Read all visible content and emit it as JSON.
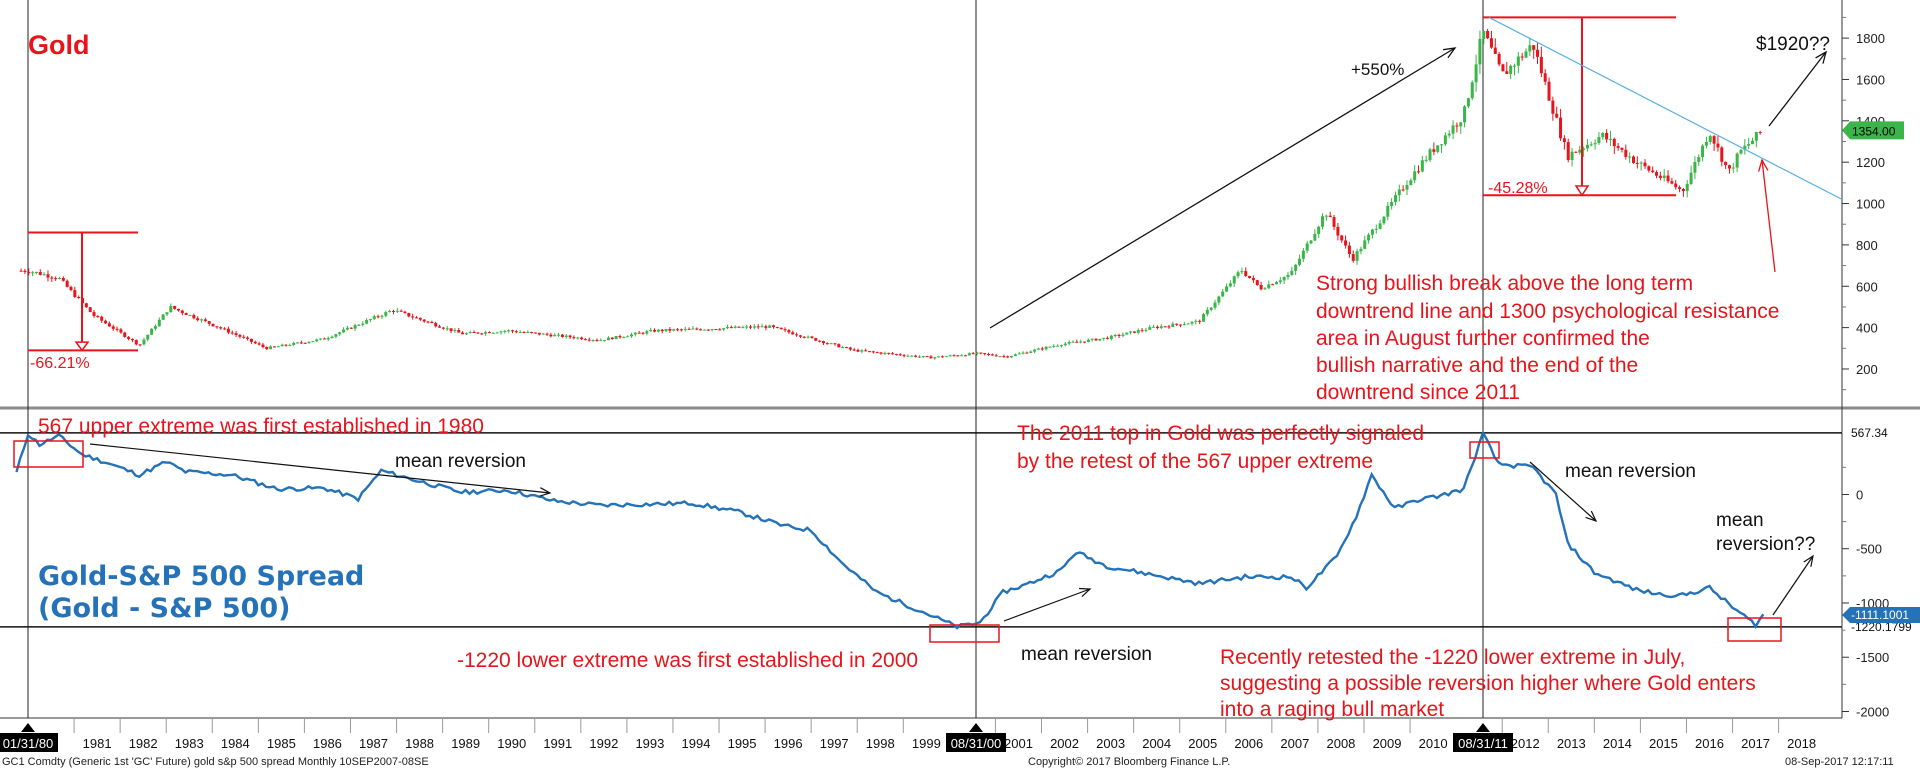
{
  "chart_data": [
    {
      "type": "candlestick",
      "title": "Gold",
      "ylim": [
        50,
        1960
      ],
      "yticks": [
        200,
        400,
        600,
        800,
        1000,
        1200,
        1400,
        1600,
        1800
      ],
      "last_value": "1354.00",
      "points": [
        {
          "date": "1980-01",
          "value": 675
        },
        {
          "date": "1980-09",
          "value": 640
        },
        {
          "date": "1981-06",
          "value": 460
        },
        {
          "date": "1982-06",
          "value": 315
        },
        {
          "date": "1983-02",
          "value": 500
        },
        {
          "date": "1984-06",
          "value": 375
        },
        {
          "date": "1985-03",
          "value": 300
        },
        {
          "date": "1986-06",
          "value": 345
        },
        {
          "date": "1987-12",
          "value": 485
        },
        {
          "date": "1989-06",
          "value": 370
        },
        {
          "date": "1990-06",
          "value": 385
        },
        {
          "date": "1992-06",
          "value": 340
        },
        {
          "date": "1993-08",
          "value": 385
        },
        {
          "date": "1996-02",
          "value": 405
        },
        {
          "date": "1997-12",
          "value": 290
        },
        {
          "date": "1999-08",
          "value": 255
        },
        {
          "date": "2000-08",
          "value": 275
        },
        {
          "date": "2001-04",
          "value": 260
        },
        {
          "date": "2002-06",
          "value": 320
        },
        {
          "date": "2003-06",
          "value": 350
        },
        {
          "date": "2004-06",
          "value": 400
        },
        {
          "date": "2005-06",
          "value": 430
        },
        {
          "date": "2006-05",
          "value": 680
        },
        {
          "date": "2006-10",
          "value": 590
        },
        {
          "date": "2007-06",
          "value": 660
        },
        {
          "date": "2008-03",
          "value": 960
        },
        {
          "date": "2008-10",
          "value": 730
        },
        {
          "date": "2009-06",
          "value": 940
        },
        {
          "date": "2009-12",
          "value": 1100
        },
        {
          "date": "2010-06",
          "value": 1240
        },
        {
          "date": "2011-03",
          "value": 1430
        },
        {
          "date": "2011-08",
          "value": 1830
        },
        {
          "date": "2012-01",
          "value": 1620
        },
        {
          "date": "2012-09",
          "value": 1770
        },
        {
          "date": "2013-06",
          "value": 1230
        },
        {
          "date": "2014-03",
          "value": 1330
        },
        {
          "date": "2014-12",
          "value": 1200
        },
        {
          "date": "2015-12",
          "value": 1060
        },
        {
          "date": "2016-07",
          "value": 1350
        },
        {
          "date": "2016-12",
          "value": 1150
        },
        {
          "date": "2017-03",
          "value": 1250
        },
        {
          "date": "2017-09",
          "value": 1354
        }
      ],
      "annotations": {
        "gain": "+550%",
        "target": "$1920??",
        "drop_1980": "-66.21%",
        "drop_2011": "-45.28%",
        "note": [
          "Strong bullish break above the long term",
          "downtrend line and 1300 psychological resistance",
          "area in August further confirmed the",
          "bullish narrative and the end of the",
          "downtrend since 2011"
        ]
      }
    },
    {
      "type": "line",
      "title": "Gold-S&P 500 Spread",
      "subtitle": "(Gold - S&P 500)",
      "ylim": [
        -2060,
        760
      ],
      "yticks": [
        -2000,
        -1500,
        -1000,
        -500,
        0
      ],
      "upper_extreme": 567.34,
      "upper_extreme_label": "567.34",
      "lower_extreme": -1220.18,
      "lower_extreme_label": "-1220.1799",
      "last_value": -1111.1,
      "last_value_label": "-1111.1001",
      "series": [
        {
          "values": [
            {
              "date": "1979-10",
              "value": 200
            },
            {
              "date": "1980-01",
              "value": 560
            },
            {
              "date": "1980-04",
              "value": 460
            },
            {
              "date": "1980-09",
              "value": 540
            },
            {
              "date": "1981-03",
              "value": 370
            },
            {
              "date": "1981-09",
              "value": 300
            },
            {
              "date": "1982-06",
              "value": 180
            },
            {
              "date": "1983-01",
              "value": 300
            },
            {
              "date": "1983-06",
              "value": 210
            },
            {
              "date": "1984-06",
              "value": 180
            },
            {
              "date": "1985-06",
              "value": 50
            },
            {
              "date": "1986-06",
              "value": 60
            },
            {
              "date": "1987-03",
              "value": -40
            },
            {
              "date": "1987-09",
              "value": 220
            },
            {
              "date": "1988-06",
              "value": 130
            },
            {
              "date": "1989-06",
              "value": 20
            },
            {
              "date": "1990-06",
              "value": 40
            },
            {
              "date": "1991-06",
              "value": -60
            },
            {
              "date": "1992-06",
              "value": -100
            },
            {
              "date": "1993-06",
              "value": -90
            },
            {
              "date": "1994-06",
              "value": -80
            },
            {
              "date": "1995-06",
              "value": -160
            },
            {
              "date": "1996-06",
              "value": -290
            },
            {
              "date": "1997-01",
              "value": -330
            },
            {
              "date": "1997-09",
              "value": -630
            },
            {
              "date": "1998-06",
              "value": -900
            },
            {
              "date": "1999-06",
              "value": -1080
            },
            {
              "date": "2000-03",
              "value": -1220
            },
            {
              "date": "2000-09",
              "value": -1180
            },
            {
              "date": "2001-03",
              "value": -900
            },
            {
              "date": "2001-09",
              "value": -830
            },
            {
              "date": "2002-06",
              "value": -700
            },
            {
              "date": "2002-10",
              "value": -530
            },
            {
              "date": "2003-06",
              "value": -660
            },
            {
              "date": "2004-06",
              "value": -740
            },
            {
              "date": "2005-06",
              "value": -820
            },
            {
              "date": "2006-06",
              "value": -760
            },
            {
              "date": "2007-06",
              "value": -760
            },
            {
              "date": "2007-10",
              "value": -860
            },
            {
              "date": "2008-06",
              "value": -570
            },
            {
              "date": "2008-11",
              "value": -200
            },
            {
              "date": "2009-03",
              "value": 180
            },
            {
              "date": "2009-09",
              "value": -130
            },
            {
              "date": "2010-03",
              "value": -50
            },
            {
              "date": "2010-09",
              "value": -10
            },
            {
              "date": "2011-03",
              "value": 50
            },
            {
              "date": "2011-08",
              "value": 560
            },
            {
              "date": "2011-12",
              "value": 280
            },
            {
              "date": "2012-09",
              "value": 250
            },
            {
              "date": "2013-03",
              "value": 0
            },
            {
              "date": "2013-06",
              "value": -450
            },
            {
              "date": "2014-01",
              "value": -720
            },
            {
              "date": "2014-12",
              "value": -880
            },
            {
              "date": "2015-06",
              "value": -920
            },
            {
              "date": "2015-12",
              "value": -930
            },
            {
              "date": "2016-07",
              "value": -860
            },
            {
              "date": "2017-01",
              "value": -1040
            },
            {
              "date": "2017-07",
              "value": -1200
            },
            {
              "date": "2017-09",
              "value": -1111
            }
          ]
        }
      ],
      "annotations": {
        "upper_note": "567 upper extreme was first established in 1980",
        "top_note": [
          "The 2011 top in Gold was perfectly signaled",
          "by the retest of the 567 upper extreme"
        ],
        "lower_note": "-1220 lower extreme was first established in 2000",
        "recent_note": [
          "Recently retested the -1220 lower extreme in July,",
          "suggesting a possible reversion higher where Gold enters",
          "into a raging bull market"
        ],
        "mean_reversion": "mean reversion",
        "mean_reversion_q": [
          "mean",
          "reversion??"
        ]
      }
    }
  ],
  "x_axis": {
    "labels": [
      "1981",
      "1982",
      "1983",
      "1984",
      "1985",
      "1986",
      "1987",
      "1988",
      "1989",
      "1990",
      "1991",
      "1992",
      "1993",
      "1994",
      "1995",
      "1996",
      "1997",
      "1998",
      "1999",
      "2001",
      "2002",
      "2003",
      "2004",
      "2005",
      "2006",
      "2007",
      "2008",
      "2009",
      "2010",
      "2012",
      "2013",
      "2014",
      "2015",
      "2016",
      "2017",
      "2018"
    ],
    "marked_dates": [
      "01/31/80",
      "08/31/00",
      "08/31/11"
    ]
  },
  "footer": {
    "left": "GC1 Comdty (Generic 1st 'GC' Future) gold s&p 500 spread  Monthly 10SEP2007-08SE",
    "center": "Copyright© 2017 Bloomberg Finance L.P.",
    "right": "08-Sep-2017 12:17:11"
  },
  "colors": {
    "candle_up": "#3ab54a",
    "candle_down": "#e8141b",
    "spread_line": "#2472b8",
    "annotation": "#e8141b",
    "trendline": "#5ab0e0",
    "last_badge": "#3ab54a"
  }
}
